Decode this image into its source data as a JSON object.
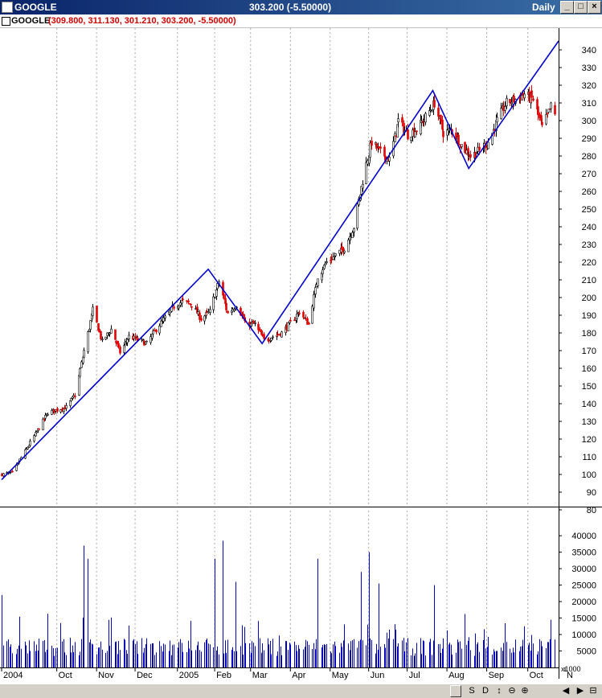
{
  "window": {
    "title": "GOOGLE",
    "last": "303.200 (-5.50000)",
    "period": "Daily"
  },
  "legend": {
    "symbol": "GOOGLE",
    "values": "(309.800, 311.130, 301.210, 303.200, -5.50000)"
  },
  "statusbar": {
    "buttons": [
      "S",
      "D",
      "↕",
      "⊖",
      "⊕",
      "◀",
      "▶",
      "⊟"
    ]
  },
  "colors": {
    "up": "#000000",
    "down": "#e00000",
    "trend": "#0000cc",
    "volume": "#0000bb",
    "grid": "#aaaaaa"
  },
  "chart_data": [
    {
      "type": "candlestick",
      "title": "GOOGLE",
      "ylim": [
        72,
        345
      ],
      "yticks": [
        80,
        90,
        100,
        110,
        120,
        130,
        140,
        150,
        160,
        170,
        180,
        190,
        200,
        210,
        220,
        230,
        240,
        250,
        260,
        270,
        280,
        290,
        300,
        310,
        320,
        330,
        340
      ],
      "xlabels": [
        "2004",
        "Oct",
        "Nov",
        "Dec",
        "2005",
        "Feb",
        "Mar",
        "Apr",
        "May",
        "Jun",
        "Jul",
        "Aug",
        "Sep",
        "Oct",
        "N"
      ],
      "grid": true,
      "trendline_points": [
        {
          "date": "2004-08-19",
          "price": 97
        },
        {
          "date": "2005-01-27",
          "price": 216
        },
        {
          "date": "2005-03-10",
          "price": 174
        },
        {
          "date": "2005-07-21",
          "price": 317
        },
        {
          "date": "2005-08-18",
          "price": 273
        },
        {
          "date": "2005-10-27",
          "price": 345
        }
      ],
      "anchors": [
        {
          "date": "2004-08-19",
          "price": 100
        },
        {
          "date": "2004-08-27",
          "price": 101
        },
        {
          "date": "2004-09-10",
          "price": 118
        },
        {
          "date": "2004-09-24",
          "price": 135
        },
        {
          "date": "2004-10-08",
          "price": 138
        },
        {
          "date": "2004-10-15",
          "price": 145
        },
        {
          "date": "2004-10-22",
          "price": 170
        },
        {
          "date": "2004-10-29",
          "price": 193
        },
        {
          "date": "2004-11-05",
          "price": 175
        },
        {
          "date": "2004-11-12",
          "price": 182
        },
        {
          "date": "2004-11-19",
          "price": 169
        },
        {
          "date": "2004-11-26",
          "price": 178
        },
        {
          "date": "2004-12-10",
          "price": 174
        },
        {
          "date": "2004-12-17",
          "price": 182
        },
        {
          "date": "2004-12-31",
          "price": 195
        },
        {
          "date": "2005-01-07",
          "price": 198
        },
        {
          "date": "2005-01-14",
          "price": 196
        },
        {
          "date": "2005-01-21",
          "price": 188
        },
        {
          "date": "2005-01-28",
          "price": 192
        },
        {
          "date": "2005-02-04",
          "price": 209
        },
        {
          "date": "2005-02-11",
          "price": 191
        },
        {
          "date": "2005-02-18",
          "price": 196
        },
        {
          "date": "2005-02-25",
          "price": 185
        },
        {
          "date": "2005-03-04",
          "price": 185
        },
        {
          "date": "2005-03-11",
          "price": 176
        },
        {
          "date": "2005-03-25",
          "price": 180
        },
        {
          "date": "2005-04-08",
          "price": 192
        },
        {
          "date": "2005-04-15",
          "price": 185
        },
        {
          "date": "2005-04-22",
          "price": 212
        },
        {
          "date": "2005-04-29",
          "price": 220
        },
        {
          "date": "2005-05-13",
          "price": 228
        },
        {
          "date": "2005-05-20",
          "price": 240
        },
        {
          "date": "2005-05-27",
          "price": 266
        },
        {
          "date": "2005-06-03",
          "price": 288
        },
        {
          "date": "2005-06-10",
          "price": 282
        },
        {
          "date": "2005-06-17",
          "price": 278
        },
        {
          "date": "2005-06-24",
          "price": 300
        },
        {
          "date": "2005-07-01",
          "price": 292
        },
        {
          "date": "2005-07-08",
          "price": 295
        },
        {
          "date": "2005-07-15",
          "price": 302
        },
        {
          "date": "2005-07-22",
          "price": 310
        },
        {
          "date": "2005-07-29",
          "price": 293
        },
        {
          "date": "2005-08-05",
          "price": 295
        },
        {
          "date": "2005-08-12",
          "price": 286
        },
        {
          "date": "2005-08-19",
          "price": 280
        },
        {
          "date": "2005-08-26",
          "price": 283
        },
        {
          "date": "2005-09-02",
          "price": 288
        },
        {
          "date": "2005-09-09",
          "price": 300
        },
        {
          "date": "2005-09-16",
          "price": 310
        },
        {
          "date": "2005-09-23",
          "price": 312
        },
        {
          "date": "2005-09-30",
          "price": 315
        },
        {
          "date": "2005-10-07",
          "price": 312
        },
        {
          "date": "2005-10-14",
          "price": 296
        },
        {
          "date": "2005-10-21",
          "price": 308
        },
        {
          "date": "2005-10-24",
          "price": 303
        }
      ]
    },
    {
      "type": "bar",
      "title": "Volume",
      "ylim": [
        0,
        42000
      ],
      "yticks": [
        5000,
        10000,
        15000,
        20000,
        25000,
        30000,
        35000,
        40000
      ],
      "unit_label": "x1000",
      "spikes": [
        {
          "date": "2004-08-19",
          "value": 22000
        },
        {
          "date": "2004-10-22",
          "value": 37000
        },
        {
          "date": "2004-10-25",
          "value": 33000
        },
        {
          "date": "2005-02-01",
          "value": 33000
        },
        {
          "date": "2005-02-07",
          "value": 38500
        },
        {
          "date": "2005-02-17",
          "value": 26000
        },
        {
          "date": "2005-04-22",
          "value": 33000
        },
        {
          "date": "2005-06-01",
          "value": 35000
        },
        {
          "date": "2005-05-26",
          "value": 29000
        },
        {
          "date": "2005-06-09",
          "value": 25500
        },
        {
          "date": "2005-07-22",
          "value": 25000
        },
        {
          "date": "2005-10-21",
          "value": 14500
        }
      ]
    }
  ]
}
